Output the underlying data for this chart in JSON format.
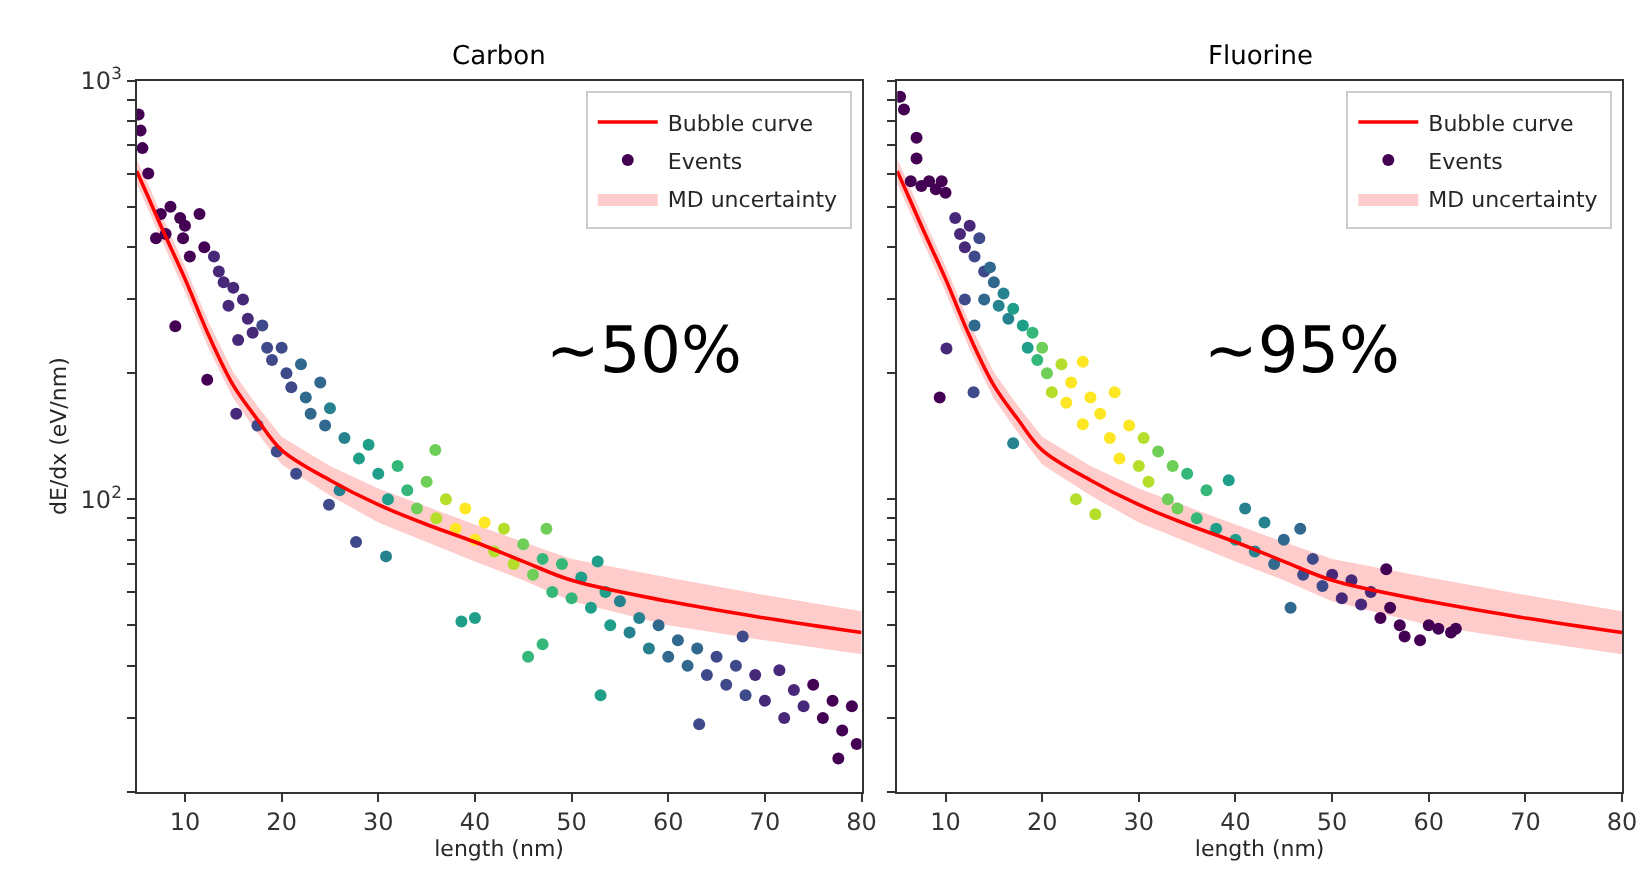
{
  "chart_data": [
    {
      "type": "scatter",
      "title": "Carbon",
      "xlabel": "length (nm)",
      "ylabel": "dE/dx (eV/nm)",
      "xlim": [
        5,
        80
      ],
      "xticks": [
        10,
        20,
        30,
        40,
        50,
        60,
        70,
        80
      ],
      "ylim": [
        20,
        1000
      ],
      "log": true,
      "legend": "top right",
      "yticks": [
        {
          "value": 20,
          "label": null
        },
        {
          "value": 30,
          "label": null
        },
        {
          "value": 40,
          "label": null
        },
        {
          "value": 50,
          "label": null
        },
        {
          "value": 60,
          "label": null
        },
        {
          "value": 70,
          "label": null
        },
        {
          "value": 80,
          "label": null
        },
        {
          "value": 90,
          "label": null
        },
        {
          "value": 100,
          "label": "10$^{2}$"
        },
        {
          "value": 200,
          "label": null
        },
        {
          "value": 300,
          "label": null
        },
        {
          "value": 400,
          "label": null
        },
        {
          "value": 500,
          "label": null
        },
        {
          "value": 600,
          "label": null
        },
        {
          "value": 700,
          "label": null
        },
        {
          "value": 800,
          "label": null
        },
        {
          "value": 900,
          "label": null
        },
        {
          "value": 1000,
          "label": "10$^{3}$"
        }
      ],
      "annotations": [
        "~50%"
      ],
      "series": [
        {
          "name": "Bubble curve",
          "type": "line",
          "color": "#ff0000",
          "x": [
            5,
            6,
            7.5,
            10,
            12.5,
            15,
            17.5,
            20,
            25,
            30,
            35,
            40,
            45,
            50,
            60,
            70,
            80
          ],
          "values": [
            608,
            540,
            450,
            336,
            245,
            187,
            155,
            131,
            111,
            97,
            87,
            79,
            71,
            64,
            57,
            52,
            48
          ],
          "upper": [
            650,
            578,
            482,
            360,
            263,
            201,
            167,
            141,
            120,
            106,
            96,
            87,
            79,
            72,
            65,
            59,
            54
          ],
          "lower": [
            568,
            504,
            420,
            313,
            228,
            174,
            144,
            121,
            102,
            88,
            79,
            71,
            64,
            57,
            50,
            46,
            42.6
          ]
        },
        {
          "name": "Events",
          "marker": "circle",
          "x": [
            5.2,
            5.4,
            5.6,
            6.2,
            7.5,
            8.5,
            9.5,
            10,
            9.8,
            11.5,
            12,
            7,
            8,
            10.5,
            9,
            12.3,
            13,
            13.5,
            14,
            15,
            14.5,
            16,
            16.5,
            17,
            15.5,
            18,
            18.5,
            19,
            20,
            20.5,
            21,
            22,
            22.5,
            23,
            24,
            24.5,
            25,
            15.3,
            17.5,
            19.5,
            21.5,
            24.9,
            26,
            27.7,
            26.5,
            28,
            29,
            30,
            30.8,
            31,
            32,
            33,
            34,
            35,
            35.9,
            36,
            37,
            38,
            39,
            40,
            41,
            42,
            43,
            44,
            38.6,
            40,
            45,
            46,
            47,
            47.4,
            48,
            49,
            50,
            45.5,
            47,
            51,
            52,
            52.7,
            53,
            53.5,
            54,
            55,
            56,
            57,
            58,
            59,
            60,
            61,
            62,
            63,
            63.2,
            64,
            65,
            66,
            67,
            67.7,
            68,
            69,
            70,
            71.5,
            72,
            73,
            74,
            75,
            76,
            77,
            77.6,
            78,
            79,
            79.5
          ],
          "values": [
            830,
            760,
            690,
            600,
            480,
            500,
            470,
            450,
            420,
            480,
            400,
            420,
            430,
            380,
            259,
            193,
            380,
            350,
            330,
            320,
            290,
            300,
            270,
            250,
            240,
            260,
            230,
            215,
            230,
            200,
            185,
            210,
            175,
            160,
            190,
            150,
            165,
            160,
            150,
            130,
            115,
            97,
            105,
            79,
            140,
            125,
            135,
            115,
            73,
            100,
            120,
            105,
            95,
            110,
            131,
            90,
            100,
            85,
            95,
            80,
            88,
            75,
            85,
            70,
            51,
            52,
            78,
            66,
            72,
            85,
            60,
            70,
            58,
            42,
            45,
            65,
            55,
            71,
            34,
            60,
            50,
            57,
            48,
            52,
            44,
            50,
            42,
            46,
            40,
            44,
            29,
            38,
            42,
            36,
            40,
            47,
            34,
            38,
            33,
            39,
            30,
            35,
            32,
            36,
            30,
            33,
            24,
            28,
            32,
            26
          ],
          "colors": [
            "#440154",
            "#440154",
            "#440154",
            "#440154",
            "#440154",
            "#440154",
            "#440154",
            "#440154",
            "#440154",
            "#440154",
            "#440154",
            "#440154",
            "#440154",
            "#440154",
            "#440154",
            "#440154",
            "#482878",
            "#482878",
            "#482878",
            "#482878",
            "#482878",
            "#482878",
            "#482878",
            "#482878",
            "#482878",
            "#3e4a89",
            "#3e4a89",
            "#3e4a89",
            "#3e4a89",
            "#3e4a89",
            "#3e4a89",
            "#31688e",
            "#31688e",
            "#31688e",
            "#31688e",
            "#31688e",
            "#26828e",
            "#482878",
            "#3e4a89",
            "#3e4a89",
            "#3e4a89",
            "#3e4a89",
            "#26828e",
            "#3e4a89",
            "#26828e",
            "#1f9e89",
            "#1f9e89",
            "#1f9e89",
            "#26828e",
            "#1f9e89",
            "#35b779",
            "#35b779",
            "#6ece58",
            "#6ece58",
            "#6ece58",
            "#b5de2b",
            "#b5de2b",
            "#fde725",
            "#fde725",
            "#fde725",
            "#fde725",
            "#b5de2b",
            "#b5de2b",
            "#b5de2b",
            "#1f9e89",
            "#1f9e89",
            "#6ece58",
            "#6ece58",
            "#35b779",
            "#6ece58",
            "#35b779",
            "#35b779",
            "#35b779",
            "#35b779",
            "#35b779",
            "#1f9e89",
            "#1f9e89",
            "#1f9e89",
            "#1f9e89",
            "#1f9e89",
            "#1f9e89",
            "#26828e",
            "#26828e",
            "#26828e",
            "#26828e",
            "#31688e",
            "#31688e",
            "#31688e",
            "#31688e",
            "#31688e",
            "#3e4a89",
            "#3e4a89",
            "#3e4a89",
            "#3e4a89",
            "#3e4a89",
            "#3e4a89",
            "#3e4a89",
            "#482878",
            "#482878",
            "#482878",
            "#482878",
            "#482878",
            "#482878",
            "#440154",
            "#440154",
            "#440154",
            "#440154",
            "#440154",
            "#440154",
            "#440154"
          ]
        },
        {
          "name": "MD uncertainty",
          "type": "area",
          "color": "#ffcccc"
        }
      ]
    },
    {
      "type": "scatter",
      "title": "Fluorine",
      "xlabel": "length (nm)",
      "xlim": [
        5,
        80
      ],
      "xticks": [
        10,
        20,
        30,
        40,
        50,
        60,
        70,
        80
      ],
      "ylim": [
        20,
        1000
      ],
      "log": true,
      "legend": "top right",
      "tick_labels": "x",
      "yticks": [
        {
          "value": 20,
          "label": null
        },
        {
          "value": 30,
          "label": null
        },
        {
          "value": 40,
          "label": null
        },
        {
          "value": 50,
          "label": null
        },
        {
          "value": 60,
          "label": null
        },
        {
          "value": 70,
          "label": null
        },
        {
          "value": 80,
          "label": null
        },
        {
          "value": 90,
          "label": null
        },
        {
          "value": 100,
          "label": null
        },
        {
          "value": 200,
          "label": null
        },
        {
          "value": 300,
          "label": null
        },
        {
          "value": 400,
          "label": null
        },
        {
          "value": 500,
          "label": null
        },
        {
          "value": 600,
          "label": null
        },
        {
          "value": 700,
          "label": null
        },
        {
          "value": 800,
          "label": null
        },
        {
          "value": 900,
          "label": null
        },
        {
          "value": 1000,
          "label": null
        }
      ],
      "annotations": [
        "~95%"
      ],
      "series": [
        {
          "name": "Bubble curve",
          "type": "line",
          "color": "#ff0000",
          "x": [
            5,
            6,
            7.5,
            10,
            12.5,
            15,
            17.5,
            20,
            25,
            30,
            35,
            40,
            45,
            50,
            60,
            70,
            80
          ],
          "values": [
            608,
            540,
            450,
            336,
            245,
            187,
            155,
            131,
            111,
            97,
            87,
            79,
            71,
            64,
            57,
            52,
            48
          ],
          "upper": [
            650,
            578,
            482,
            360,
            263,
            201,
            167,
            141,
            120,
            106,
            96,
            87,
            79,
            72,
            65,
            59,
            54
          ],
          "lower": [
            568,
            504,
            420,
            313,
            228,
            174,
            144,
            121,
            102,
            88,
            79,
            71,
            64,
            57,
            50,
            46,
            42.6
          ]
        },
        {
          "name": "Events",
          "marker": "circle",
          "x": [
            5.3,
            5.7,
            7,
            7,
            6.4,
            7.5,
            8.3,
            9,
            9.6,
            10,
            9.4,
            10.1,
            12.9,
            11,
            11.5,
            12,
            12.5,
            13,
            13.5,
            14,
            14.6,
            14,
            15,
            15.5,
            16,
            16.5,
            13,
            12,
            17,
            17,
            18,
            18.5,
            19,
            19.5,
            20,
            20.5,
            21,
            22,
            22.5,
            23,
            23.5,
            24.2,
            24.2,
            25,
            25.5,
            26,
            27,
            27.5,
            28,
            29,
            30,
            30.5,
            31,
            32,
            33,
            33.5,
            34,
            35,
            36,
            37,
            38,
            39.3,
            40,
            41,
            42,
            43,
            44,
            45,
            45.7,
            46.7,
            47,
            48,
            49,
            50,
            51,
            52,
            53,
            54,
            55,
            55.6,
            56,
            57,
            57.5,
            59.1,
            60,
            61,
            62.3,
            62.8
          ],
          "values": [
            915,
            853,
            731,
            652,
            575,
            560,
            575,
            550,
            575,
            540,
            175,
            229,
            180,
            470,
            430,
            400,
            450,
            380,
            420,
            350,
            358,
            300,
            330,
            290,
            310,
            270,
            260,
            300,
            136,
            285,
            260,
            230,
            250,
            215,
            230,
            200,
            180,
            210,
            170,
            190,
            100,
            213,
            151,
            175,
            92,
            160,
            140,
            180,
            125,
            150,
            120,
            140,
            110,
            130,
            100,
            120,
            95,
            115,
            90,
            105,
            85,
            111,
            80,
            95,
            75,
            88,
            70,
            80,
            55,
            85,
            66,
            72,
            62,
            66,
            58,
            64,
            56,
            60,
            52,
            68,
            55,
            50,
            47,
            46,
            50,
            49,
            48,
            49
          ],
          "colors": [
            "#440154",
            "#440154",
            "#440154",
            "#440154",
            "#440154",
            "#440154",
            "#440154",
            "#440154",
            "#440154",
            "#440154",
            "#440154",
            "#482878",
            "#3e4a89",
            "#482878",
            "#482878",
            "#482878",
            "#482878",
            "#3e4a89",
            "#3e4a89",
            "#3e4a89",
            "#31688e",
            "#31688e",
            "#31688e",
            "#26828e",
            "#26828e",
            "#26828e",
            "#31688e",
            "#3e4a89",
            "#26828e",
            "#1f9e89",
            "#1f9e89",
            "#1f9e89",
            "#35b779",
            "#35b779",
            "#6ece58",
            "#6ece58",
            "#b5de2b",
            "#b5de2b",
            "#fde725",
            "#fde725",
            "#b5de2b",
            "#fde725",
            "#fde725",
            "#fde725",
            "#b5de2b",
            "#fde725",
            "#fde725",
            "#fde725",
            "#fde725",
            "#fde725",
            "#b5de2b",
            "#b5de2b",
            "#b5de2b",
            "#6ece58",
            "#6ece58",
            "#6ece58",
            "#6ece58",
            "#35b779",
            "#35b779",
            "#35b779",
            "#1f9e89",
            "#1f9e89",
            "#1f9e89",
            "#26828e",
            "#26828e",
            "#26828e",
            "#31688e",
            "#31688e",
            "#31688e",
            "#31688e",
            "#3e4a89",
            "#3e4a89",
            "#3e4a89",
            "#482878",
            "#482878",
            "#482878",
            "#482878",
            "#482878",
            "#440154",
            "#440154",
            "#440154",
            "#440154",
            "#440154",
            "#440154",
            "#440154",
            "#440154",
            "#440154",
            "#440154"
          ]
        },
        {
          "name": "MD uncertainty",
          "type": "area",
          "color": "#ffcccc"
        }
      ]
    }
  ]
}
